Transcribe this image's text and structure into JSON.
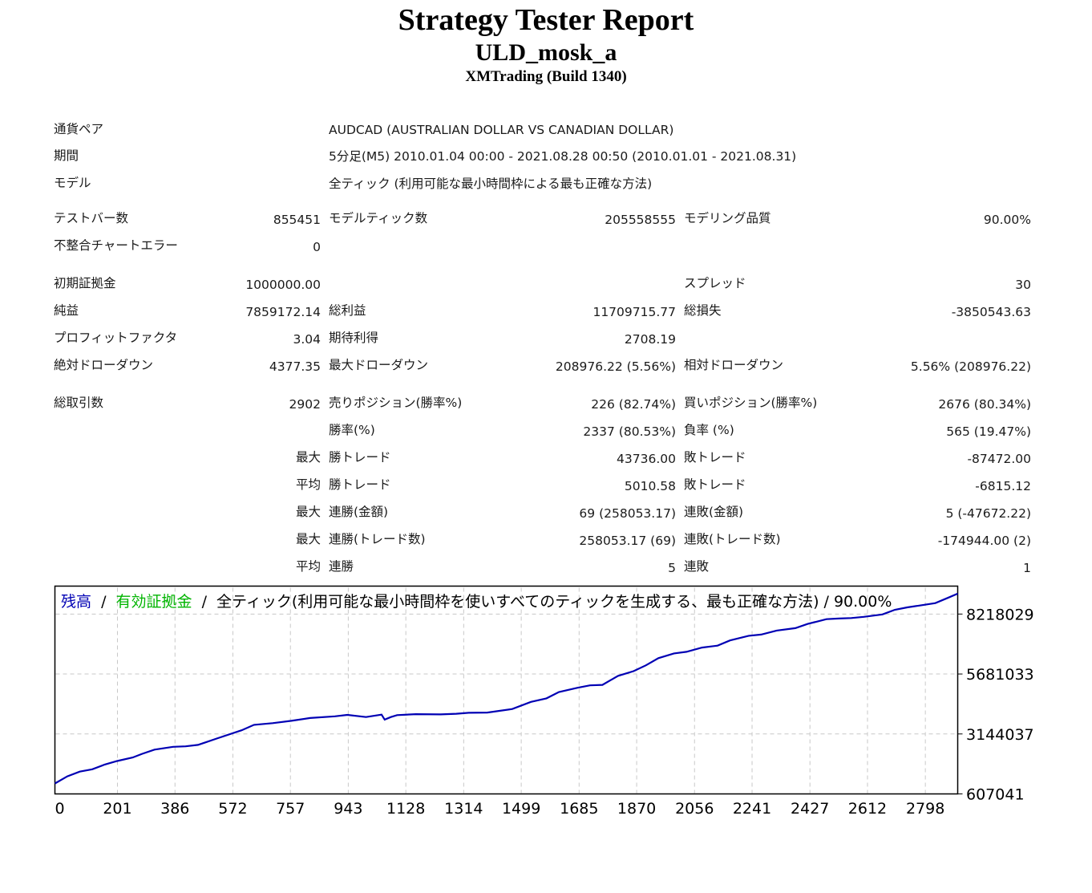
{
  "header": {
    "title": "Strategy Tester Report",
    "expert": "ULD_mosk_a",
    "company": "XMTrading (Build 1340)"
  },
  "info": {
    "symbol_label": "通貨ペア",
    "symbol_value": "AUDCAD (AUSTRALIAN DOLLAR VS CANADIAN DOLLAR)",
    "period_label": "期間",
    "period_value": "5分足(M5) 2010.01.04 00:00 - 2021.08.28 00:50 (2010.01.01 - 2021.08.31)",
    "model_label": "モデル",
    "model_value": "全ティック (利用可能な最小時間枠による最も正確な方法)"
  },
  "bars": {
    "bars_label": "テストバー数",
    "bars_value": "855451",
    "ticks_label": "モデルティック数",
    "ticks_value": "205558555",
    "quality_label": "モデリング品質",
    "quality_value": "90.00%",
    "errors_label": "不整合チャートエラー",
    "errors_value": "0"
  },
  "results": {
    "deposit_label": "初期証拠金",
    "deposit_value": "1000000.00",
    "spread_label": "スプレッド",
    "spread_value": "30",
    "net_label": "純益",
    "net_value": "7859172.14",
    "gross_profit_label": "総利益",
    "gross_profit_value": "11709715.77",
    "gross_loss_label": "総損失",
    "gross_loss_value": "-3850543.63",
    "pf_label": "プロフィットファクタ",
    "pf_value": "3.04",
    "expected_label": "期待利得",
    "expected_value": "2708.19",
    "abs_dd_label": "絶対ドローダウン",
    "abs_dd_value": "4377.35",
    "max_dd_label": "最大ドローダウン",
    "max_dd_value": "208976.22 (5.56%)",
    "rel_dd_label": "相対ドローダウン",
    "rel_dd_value": "5.56% (208976.22)"
  },
  "trades": {
    "total_label": "総取引数",
    "total_value": "2902",
    "short_label": "売りポジション(勝率%)",
    "short_value": "226 (82.74%)",
    "long_label": "買いポジション(勝率%)",
    "long_value": "2676 (80.34%)",
    "win_label": "勝率(%)",
    "win_value": "2337 (80.53%)",
    "loss_label": "負率 (%)",
    "loss_value": "565 (19.47%)",
    "largest_prefix": "最大",
    "largest_win_label": "勝トレード",
    "largest_win_value": "43736.00",
    "largest_loss_label": "敗トレード",
    "largest_loss_value": "-87472.00",
    "average_prefix": "平均",
    "avg_win_label": "勝トレード",
    "avg_win_value": "5010.58",
    "avg_loss_label": "敗トレード",
    "avg_loss_value": "-6815.12",
    "max_prefix": "最大",
    "max_consec_wins_label": "連勝(金額)",
    "max_consec_wins_value": "69 (258053.17)",
    "max_consec_losses_label": "連敗(金額)",
    "max_consec_losses_value": "5 (-47672.22)",
    "max2_prefix": "最大",
    "max_consec_profit_label": "連勝(トレード数)",
    "max_consec_profit_value": "258053.17 (69)",
    "max_consec_loss_label": "連敗(トレード数)",
    "max_consec_loss_value": "-174944.00 (2)",
    "avg2_prefix": "平均",
    "avg_consec_wins_label": "連勝",
    "avg_consec_wins_value": "5",
    "avg_consec_losses_label": "連敗",
    "avg_consec_losses_value": "1"
  },
  "chart_data": {
    "type": "line",
    "legend": {
      "balance": "残高",
      "sep1": "/",
      "equity": "有効証拠金",
      "sep2": "/",
      "description": "全ティック(利用可能な最小時間枠を使いすべてのティックを生成する、最も正確な方法) / 90.00%"
    },
    "x_ticks": [
      "0",
      "201",
      "386",
      "572",
      "757",
      "943",
      "1128",
      "1314",
      "1499",
      "1685",
      "1870",
      "2056",
      "2241",
      "2427",
      "2612",
      "2798"
    ],
    "x_tick_values": [
      0,
      201,
      386,
      572,
      757,
      943,
      1128,
      1314,
      1499,
      1685,
      1870,
      2056,
      2241,
      2427,
      2612,
      2798
    ],
    "y_ticks": [
      "8218029",
      "5681033",
      "3144037",
      "607041"
    ],
    "y_tick_values": [
      8218029,
      5681033,
      3144037,
      607041
    ],
    "xlim": [
      0,
      2902
    ],
    "ylim": [
      607041,
      9400000
    ],
    "grid": true,
    "colors": {
      "balance": "#0000b4",
      "equity": "#00b400",
      "grid": "#c8c8c8",
      "frame": "#000000"
    },
    "series": [
      {
        "name": "残高",
        "x": [
          0,
          40,
          80,
          120,
          160,
          200,
          250,
          280,
          320,
          380,
          420,
          460,
          520,
          600,
          640,
          700,
          760,
          820,
          900,
          940,
          1000,
          1050,
          1060,
          1080,
          1100,
          1160,
          1240,
          1290,
          1330,
          1390,
          1470,
          1530,
          1580,
          1620,
          1680,
          1720,
          1760,
          1810,
          1860,
          1900,
          1940,
          1990,
          2030,
          2080,
          2130,
          2170,
          2230,
          2270,
          2320,
          2380,
          2420,
          2480,
          2520,
          2560,
          2600,
          2660,
          2700,
          2740,
          2780,
          2830,
          2870,
          2902
        ],
        "y": [
          1050000,
          1350000,
          1550000,
          1650000,
          1850000,
          2000000,
          2150000,
          2300000,
          2480000,
          2600000,
          2620000,
          2680000,
          2950000,
          3300000,
          3530000,
          3600000,
          3700000,
          3820000,
          3890000,
          3950000,
          3860000,
          3960000,
          3750000,
          3860000,
          3940000,
          3980000,
          3970000,
          4000000,
          4040000,
          4050000,
          4200000,
          4500000,
          4650000,
          4920000,
          5100000,
          5200000,
          5220000,
          5600000,
          5800000,
          6050000,
          6350000,
          6550000,
          6620000,
          6800000,
          6880000,
          7100000,
          7300000,
          7350000,
          7520000,
          7620000,
          7800000,
          8000000,
          8030000,
          8050000,
          8100000,
          8200000,
          8400000,
          8500000,
          8580000,
          8680000,
          8900000,
          9080000
        ]
      }
    ]
  }
}
